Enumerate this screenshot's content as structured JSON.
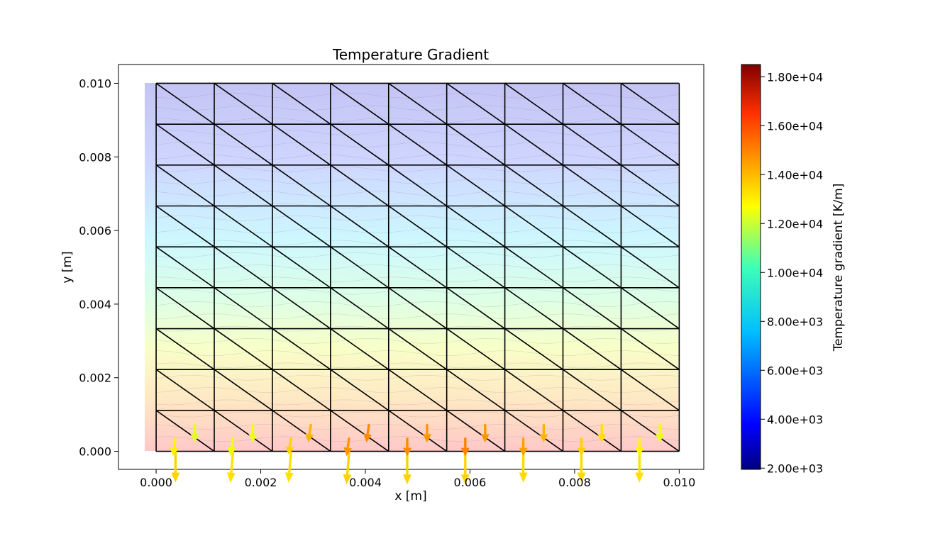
{
  "chart_data": {
    "type": "quiver",
    "title": "Temperature Gradient",
    "xlabel": "x [m]",
    "ylabel": "y [m]",
    "xlim": [
      -0.00072,
      0.01047
    ],
    "ylim": [
      -0.00049,
      0.01051
    ],
    "x_ticks": [
      "0.000",
      "0.002",
      "0.004",
      "0.006",
      "0.008",
      "0.010"
    ],
    "y_ticks": [
      "0.000",
      "0.002",
      "0.004",
      "0.006",
      "0.008",
      "0.010"
    ],
    "colorbar": {
      "label": "Temperature gradient [K/m]",
      "colormap": "jet",
      "range": [
        1950,
        18500
      ],
      "ticks": [
        "2.00e+03",
        "4.00e+03",
        "6.00e+03",
        "8.00e+03",
        "1.00e+04",
        "1.20e+04",
        "1.40e+04",
        "1.60e+04",
        "1.80e+04"
      ]
    },
    "background_colormap": "bwr",
    "background_temperature_fraction_bottom_to_top": [
      0.92,
      0.8,
      0.67,
      0.55,
      0.45,
      0.38,
      0.3,
      0.2,
      0.08
    ],
    "mesh": {
      "nx": 9,
      "ny": 9,
      "x_range": [
        0,
        0.01
      ],
      "y_range": [
        0,
        0.01
      ],
      "diagonal": "top-left to bottom-right"
    },
    "grid": false,
    "vectors_note": "dx, dy in data units of the quiver arrows; magnitude in K/m",
    "vectors": [
      [
        0.00037,
        0.0,
        0.0,
        -0.00085,
        13000
      ],
      [
        0.00147,
        0.0,
        -5e-05,
        -0.00085,
        12800
      ],
      [
        0.00258,
        0.0,
        -5e-05,
        -0.00085,
        12800
      ],
      [
        0.00369,
        0.0,
        -5e-05,
        -0.0009,
        13000
      ],
      [
        0.0048,
        0.0,
        0.0,
        -0.0009,
        13000
      ],
      [
        0.00591,
        0.0,
        0.0,
        -0.0009,
        13000
      ],
      [
        0.00702,
        0.0,
        0.0,
        -0.00085,
        12900
      ],
      [
        0.00813,
        0.0,
        0.0,
        -0.00085,
        12900
      ],
      [
        0.00924,
        0.0,
        0.0,
        -0.00085,
        12800
      ],
      [
        0.00074,
        0.00074,
        0.0,
        -0.0005,
        11800
      ],
      [
        0.00185,
        0.00074,
        0.0,
        -0.0005,
        12000
      ],
      [
        0.00296,
        0.00074,
        -5e-05,
        -0.0005,
        13500
      ],
      [
        0.00407,
        0.00074,
        -5e-05,
        -0.0005,
        14200
      ],
      [
        0.00518,
        0.00074,
        0.0,
        -0.0005,
        14000
      ],
      [
        0.00629,
        0.00074,
        0.0,
        -0.0005,
        14000
      ],
      [
        0.00741,
        0.00074,
        0.0,
        -0.0005,
        13500
      ],
      [
        0.00852,
        0.00074,
        0.0,
        -0.0005,
        12800
      ],
      [
        0.00963,
        0.00074,
        0.0,
        -0.0005,
        12000
      ],
      [
        0.00037,
        0.00037,
        -5e-05,
        -0.0005,
        12500
      ],
      [
        0.00147,
        0.00037,
        -5e-05,
        -0.0005,
        12000
      ],
      [
        0.00258,
        0.00037,
        -5e-05,
        -0.00045,
        13000
      ],
      [
        0.00369,
        0.00037,
        -5e-05,
        -0.0005,
        14000
      ],
      [
        0.0048,
        0.00037,
        0.0,
        -0.0005,
        14200
      ],
      [
        0.00591,
        0.00037,
        0.0,
        -0.0005,
        14300
      ],
      [
        0.00702,
        0.00037,
        0.0,
        -0.0005,
        13800
      ],
      [
        0.00813,
        0.00037,
        0.0,
        -0.0005,
        13000
      ],
      [
        0.00924,
        0.00037,
        0.0,
        -0.0005,
        12400
      ]
    ]
  }
}
